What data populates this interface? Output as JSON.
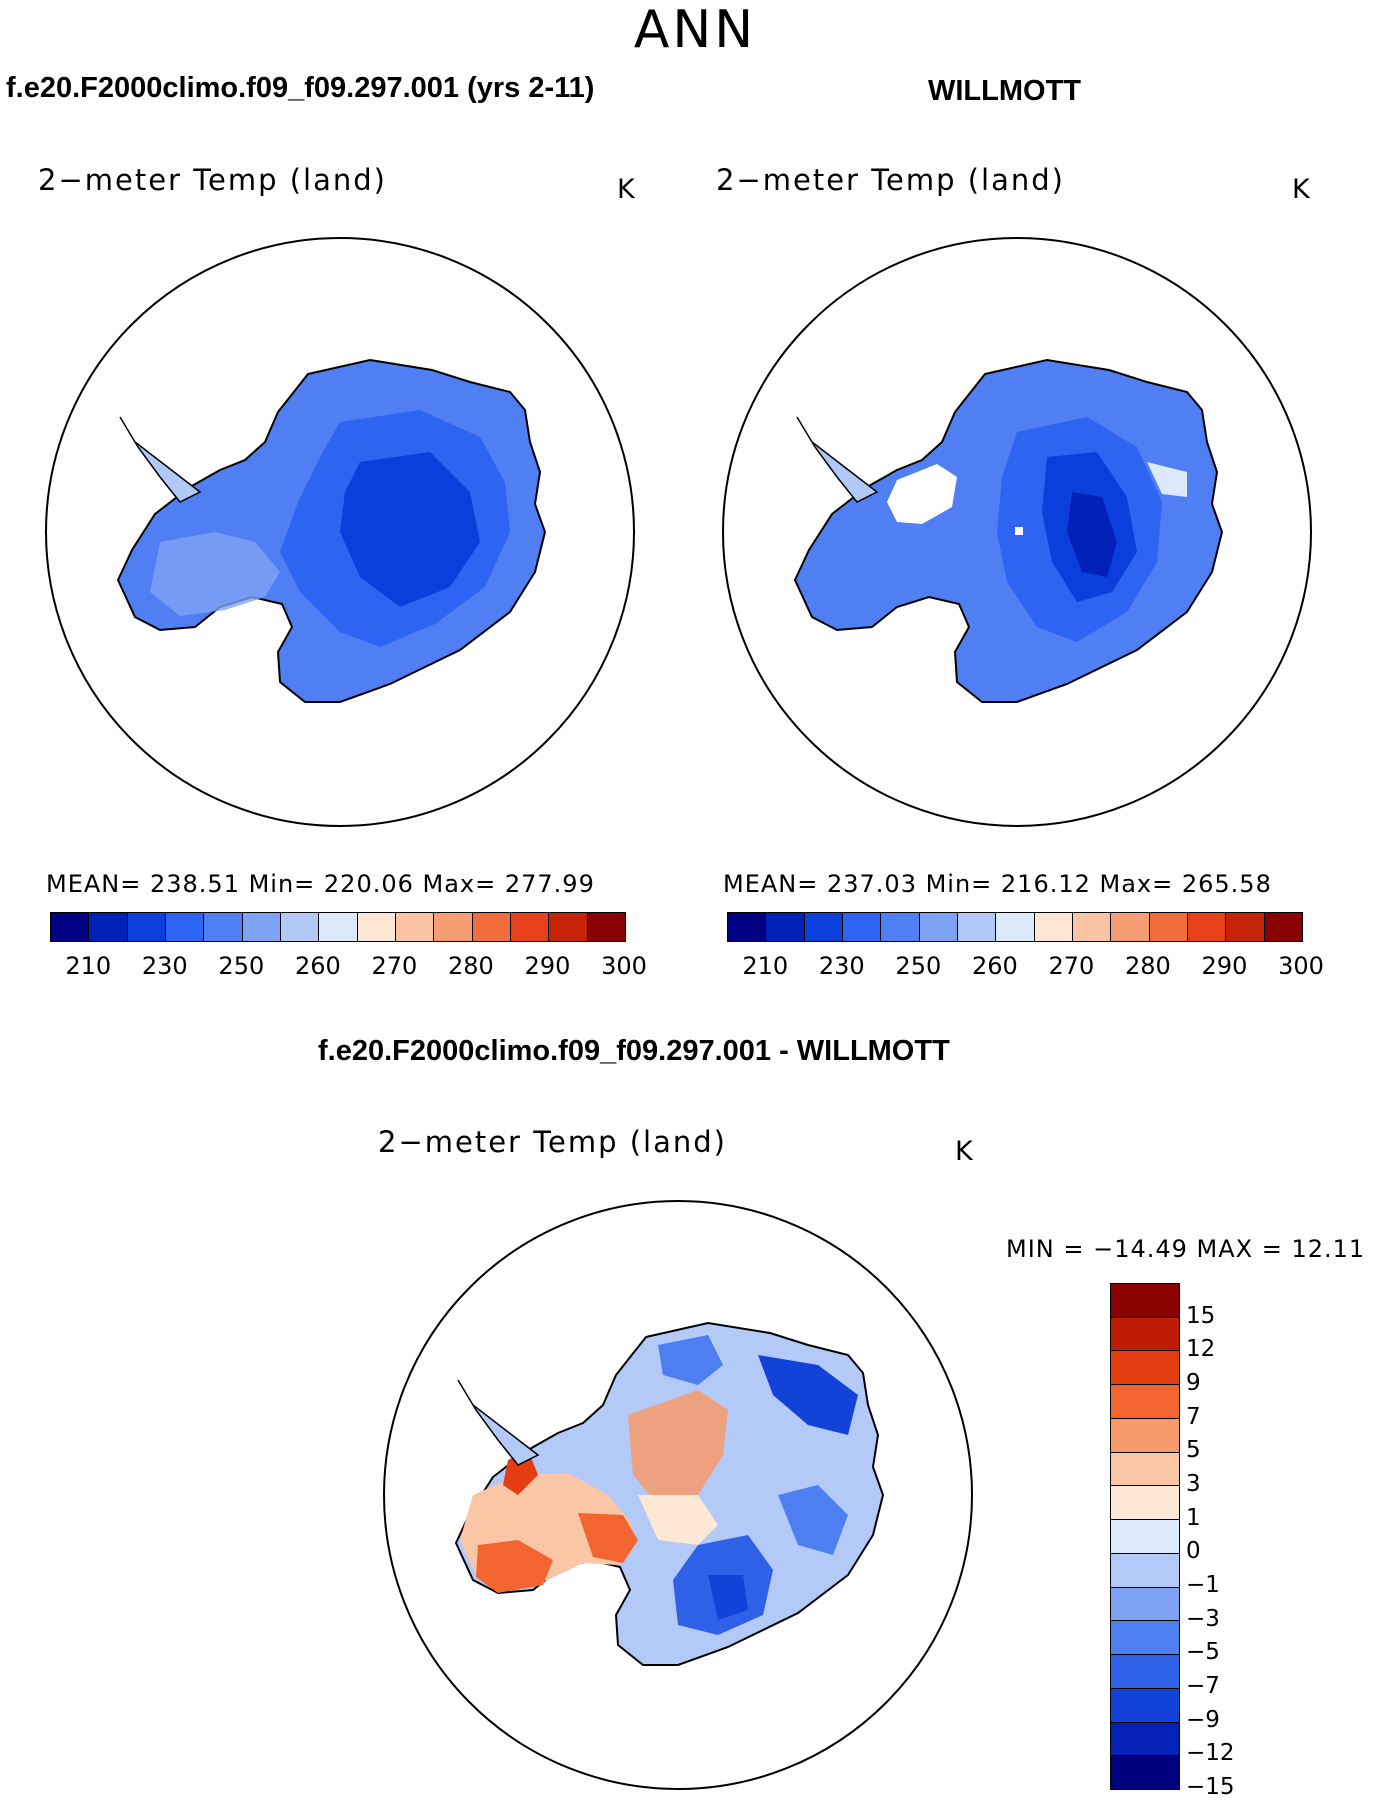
{
  "figure": {
    "title": "ANN"
  },
  "panels": {
    "model": {
      "case_title": "f.e20.F2000climo.f09_f09.297.001 (yrs 2-11)",
      "variable": "2−meter Temp (land)",
      "units": "K",
      "stats": "MEAN= 238.51   Min= 220.06   Max= 277.99"
    },
    "obs": {
      "case_title": "WILLMOTT",
      "variable": "2−meter Temp (land)",
      "units": "K",
      "stats": "MEAN= 237.03   Min= 216.12   Max= 265.58"
    },
    "diff": {
      "case_title": "f.e20.F2000climo.f09_f09.297.001 - WILLMOTT",
      "variable": "2−meter Temp (land)",
      "units": "K",
      "stats": "MIN = −14.49  MAX =   12.11"
    }
  },
  "colorbar_abs": {
    "colors": [
      "#000083",
      "#0020b8",
      "#0b3fdc",
      "#2e64f2",
      "#4f7ff3",
      "#7fa3f4",
      "#b2c9f7",
      "#dbe9fb",
      "#fde7d4",
      "#f9c3a4",
      "#f79d73",
      "#f36d3c",
      "#e8401b",
      "#c42308",
      "#8b0000"
    ],
    "tick_labels": [
      "210",
      "230",
      "250",
      "260",
      "270",
      "280",
      "290",
      "300"
    ]
  },
  "colorbar_diff": {
    "colors": [
      "#8b0000",
      "#bf1c05",
      "#e43d11",
      "#f26530",
      "#f79a6a",
      "#fac6a6",
      "#fde8d6",
      "#dcebfb",
      "#b3c9f7",
      "#7ea2f3",
      "#4d7ff0",
      "#2f60e8",
      "#1342d8",
      "#0522b6",
      "#00007e"
    ],
    "tick_labels": [
      "15",
      "12",
      "9",
      "7",
      "5",
      "3",
      "1",
      "0",
      "−1",
      "−3",
      "−5",
      "−7",
      "−9",
      "−12",
      "−15"
    ]
  }
}
